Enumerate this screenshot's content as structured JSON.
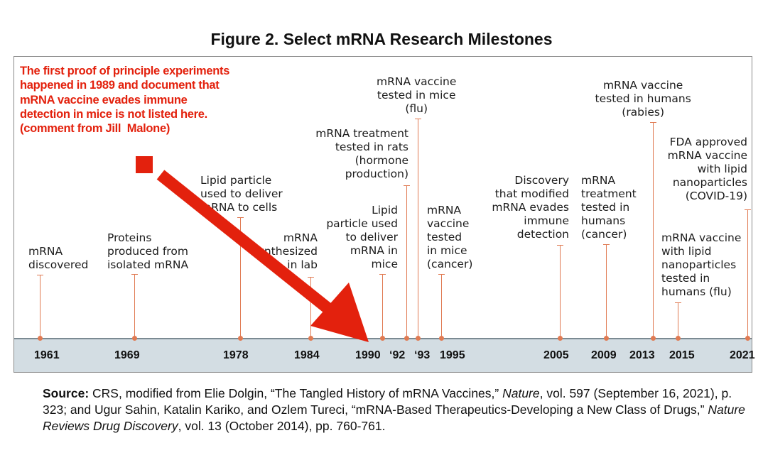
{
  "title": "Figure 2. Select mRNA Research Milestones",
  "note": "The first proof of principle experiments\nhappened in 1989 and document that\nmRNA vaccine evades immune\ndetection in mice is not listed here.\n(comment from Jill  Malone)",
  "colors": {
    "note": "#e3210d",
    "stem": "#e07a52",
    "axis_band": "#d3dde3"
  },
  "axis_ticks": [
    "1961",
    "1969",
    "1978",
    "1984",
    "1990",
    "‘92",
    "‘93",
    "1995",
    "2005",
    "2009",
    "2013",
    "2015",
    "2021"
  ],
  "events": [
    {
      "year": "1961",
      "label": "mRNA\ndiscovered"
    },
    {
      "year": "1969",
      "label": "Proteins\nproduced from\nisolated mRNA"
    },
    {
      "year": "1978",
      "label": "Lipid particle\nused to deliver\nmRNA to cells"
    },
    {
      "year": "1984",
      "label": "mRNA\nsynthesized\nin lab"
    },
    {
      "year": "1990",
      "label": "Lipid\nparticle used\nto deliver\nmRNA in\nmice"
    },
    {
      "year": "1992",
      "label": "mRNA treatment\ntested in rats\n(hormone\nproduction)"
    },
    {
      "year": "1993",
      "label": "mRNA vaccine\ntested in mice\n(flu)"
    },
    {
      "year": "1995",
      "label": "mRNA\nvaccine\ntested\nin mice\n(cancer)"
    },
    {
      "year": "2005",
      "label": "Discovery\nthat modified\nmRNA evades\nimmune\ndetection"
    },
    {
      "year": "2009",
      "label": "mRNA\ntreatment\ntested in\nhumans\n(cancer)"
    },
    {
      "year": "2013",
      "label": "mRNA vaccine\ntested in humans\n(rabies)"
    },
    {
      "year": "2015",
      "label": "mRNA vaccine\nwith lipid\nnanoparticles\ntested in\nhumans (flu)"
    },
    {
      "year": "2021",
      "label": "FDA approved\nmRNA vaccine\nwith lipid\nnanoparticles\n(COVID-19)"
    }
  ],
  "source": {
    "label": "Source:",
    "part1": " CRS, modified from Elie Dolgin, “The Tangled History of mRNA Vaccines,” ",
    "journal1": "Nature",
    "part2": ", vol. 597 (September 16, 2021), p. 323; and Ugur Sahin, Katalin Kariko, and Ozlem Tureci, “mRNA-Based Therapeutics-Developing a New Class of Drugs,” ",
    "journal2": "Nature Reviews Drug Discovery",
    "part3": ", vol. 13 (October 2014), pp. 760-761."
  }
}
